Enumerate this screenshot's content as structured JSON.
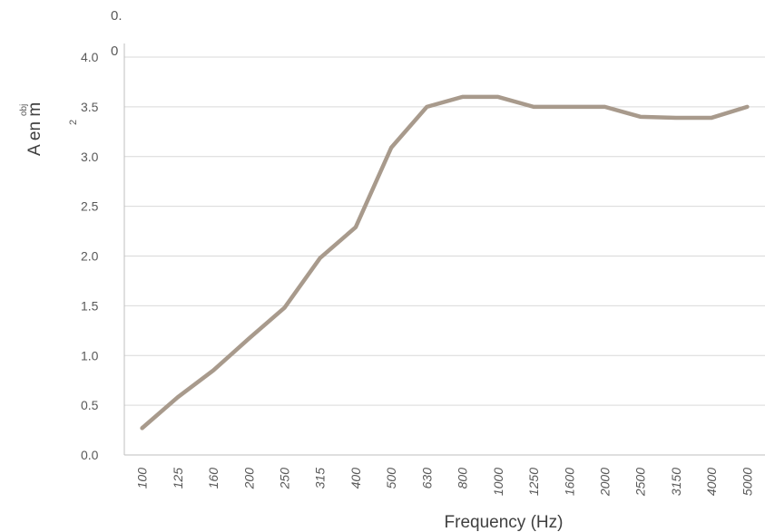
{
  "chart_data": {
    "type": "line",
    "xlabel": "Frequency (Hz)",
    "ylabel": "A en m",
    "ylabel_superscript": "obj",
    "ylabel_exponent": "2",
    "stray_text": [
      "0.",
      "0"
    ],
    "categories": [
      "100",
      "125",
      "160",
      "200",
      "250",
      "315",
      "400",
      "500",
      "630",
      "800",
      "1000",
      "1250",
      "1600",
      "2000",
      "2500",
      "3150",
      "4000",
      "5000"
    ],
    "y_ticks": [
      "0.0",
      "0.5",
      "1.0",
      "1.5",
      "2.0",
      "2.5",
      "3.0",
      "3.5",
      "4.0"
    ],
    "ylim": [
      0,
      4
    ],
    "grid": true,
    "series": [
      {
        "values": [
          0.27,
          0.58,
          0.85,
          1.17,
          1.48,
          1.98,
          2.29,
          3.09,
          3.5,
          3.6,
          3.6,
          3.5,
          3.5,
          3.5,
          3.4,
          3.39,
          3.39,
          3.5
        ]
      }
    ],
    "colors": {
      "line": "#a89a8c",
      "grid": "#d9d9d9",
      "axis": "#bfbfbf",
      "text": "#595959"
    }
  }
}
